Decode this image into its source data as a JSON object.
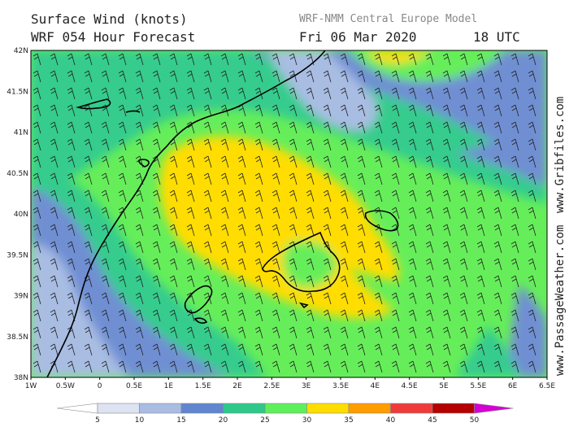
{
  "header": {
    "title_line1": "Surface Wind (knots)",
    "title_line2": "WRF 054 Hour Forecast",
    "model": "WRF-NMM Central Europe Model",
    "date": "Fri 06 Mar 2020",
    "time": "18 UTC"
  },
  "credits": {
    "site1": "www.Gribfiles.com",
    "site2": "www.PassageWeather.com"
  },
  "map": {
    "lon_ticks": [
      "1W",
      "0.5W",
      "0",
      "0.5E",
      "1E",
      "1.5E",
      "2E",
      "2.5E",
      "3E",
      "3.5E",
      "4E",
      "4.5E",
      "5E",
      "5.5E",
      "6E",
      "6.5E"
    ],
    "lat_ticks": [
      "42N",
      "41.5N",
      "41N",
      "40.5N",
      "40N",
      "39.5N",
      "39N",
      "38.5N",
      "38N"
    ]
  },
  "legend": {
    "labels": [
      "5",
      "10",
      "15",
      "20",
      "25",
      "30",
      "35",
      "40",
      "45",
      "50"
    ],
    "colors": [
      "#ffffff",
      "#dde3f3",
      "#a9bde3",
      "#5f86cf",
      "#2ec98a",
      "#5ef05a",
      "#ffdd00",
      "#ff9c00",
      "#ef3a3a",
      "#b40000",
      "#d400d4"
    ]
  },
  "colors": {
    "wind_5_10": "#dde3f3",
    "wind_10_15": "#a9bde3",
    "wind_15_20": "#6f8fd3",
    "wind_20_25": "#35cc8e",
    "wind_25_30": "#66ee5a",
    "wind_30_35": "#ffdd00"
  }
}
